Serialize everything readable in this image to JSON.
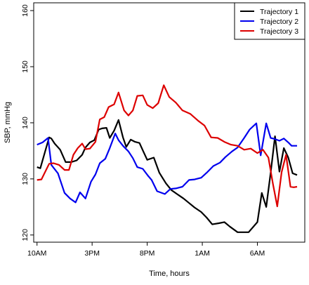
{
  "chart_data": {
    "type": "line",
    "title": "",
    "xlabel": "Time, hours",
    "ylabel": "SBP, mmHg",
    "ylim": [
      120,
      160
    ],
    "yticks": [
      120,
      130,
      140,
      150,
      160
    ],
    "x_tick_labels": [
      "10AM",
      "3PM",
      "8PM",
      "1AM",
      "6AM"
    ],
    "x_tick_hours": [
      0,
      5,
      10,
      15,
      20
    ],
    "xlim": [
      -0.3,
      24.3
    ],
    "grid": false,
    "legend_position": "top-right",
    "series": [
      {
        "name": "Trajectory 1",
        "color": "#000000",
        "x": [
          0,
          0.3,
          1.1,
          1.3,
          1.6,
          2.1,
          2.6,
          3.1,
          3.6,
          4.1,
          4.4,
          4.8,
          5.2,
          5.6,
          5.9,
          6.3,
          6.6,
          7.0,
          7.4,
          7.8,
          8.1,
          8.5,
          8.9,
          9.3,
          9.6,
          10.0,
          10.6,
          11.1,
          11.7,
          12.2,
          12.7,
          13.3,
          13.8,
          14.3,
          14.9,
          15.4,
          15.9,
          16.5,
          17.0,
          17.5,
          18.2,
          19.2,
          20.0,
          20.4,
          20.8,
          21.2,
          21.6,
          22.0,
          22.4,
          22.8,
          23.2,
          23.6
        ],
        "y": [
          132.1,
          131.9,
          137.4,
          137.2,
          136.3,
          135.2,
          133.0,
          133.0,
          133.3,
          134.3,
          135.6,
          136.5,
          136.9,
          138.8,
          139.0,
          139.1,
          137.3,
          138.6,
          140.5,
          137.4,
          135.7,
          137.0,
          136.6,
          136.4,
          135.1,
          133.4,
          133.8,
          131.1,
          129.2,
          128.0,
          127.3,
          126.5,
          125.7,
          124.9,
          124.1,
          123.1,
          121.9,
          122.1,
          122.3,
          121.5,
          120.5,
          120.5,
          122.3,
          127.5,
          125.0,
          131.1,
          137.6,
          131.3,
          135.5,
          133.8,
          131.0,
          130.7
        ]
      },
      {
        "name": "Trajectory 2",
        "color": "#0000ee",
        "x": [
          0,
          0.5,
          1.0,
          1.3,
          1.9,
          2.5,
          3.0,
          3.5,
          3.9,
          4.4,
          4.9,
          5.3,
          5.7,
          6.2,
          6.6,
          7.1,
          7.4,
          7.8,
          8.3,
          8.7,
          9.1,
          9.6,
          10.1,
          10.4,
          10.9,
          11.6,
          12.1,
          12.6,
          13.2,
          13.8,
          14.3,
          14.9,
          15.4,
          16.0,
          16.6,
          17.1,
          17.7,
          18.2,
          18.8,
          19.3,
          19.9,
          20.3,
          20.8,
          21.2,
          21.6,
          22.0,
          22.4,
          22.8,
          23.1,
          23.6
        ],
        "y": [
          136.1,
          136.5,
          137.3,
          132.5,
          131.0,
          127.5,
          126.5,
          125.8,
          127.6,
          126.5,
          129.5,
          130.8,
          132.8,
          133.6,
          135.5,
          138.1,
          136.9,
          135.9,
          134.9,
          133.7,
          132.1,
          131.8,
          130.5,
          129.8,
          127.8,
          127.3,
          128.2,
          128.3,
          128.6,
          129.8,
          129.9,
          130.2,
          131.1,
          132.3,
          132.9,
          133.9,
          134.9,
          135.6,
          137.3,
          138.8,
          139.9,
          134.2,
          139.9,
          137.3,
          137.1,
          136.8,
          137.2,
          136.5,
          135.9,
          135.9
        ]
      },
      {
        "name": "Trajectory 3",
        "color": "#dd0000",
        "x": [
          0,
          0.4,
          1.1,
          1.5,
          2.0,
          2.5,
          2.9,
          3.3,
          3.7,
          4.1,
          4.4,
          4.8,
          5.3,
          5.7,
          6.1,
          6.5,
          7.0,
          7.4,
          7.9,
          8.3,
          8.7,
          9.1,
          9.6,
          10.0,
          10.5,
          11.0,
          11.5,
          12.0,
          12.6,
          13.2,
          13.9,
          14.6,
          15.2,
          15.8,
          16.4,
          17.0,
          17.6,
          18.2,
          18.8,
          19.4,
          20.0,
          20.5,
          21.0,
          21.4,
          21.8,
          22.2,
          22.6,
          23.0,
          23.3,
          23.6
        ],
        "y": [
          129.8,
          129.9,
          132.7,
          132.8,
          132.5,
          131.6,
          131.6,
          134.3,
          135.5,
          136.3,
          135.3,
          135.4,
          136.6,
          140.6,
          141.0,
          142.8,
          143.3,
          145.4,
          142.2,
          141.3,
          142.2,
          144.8,
          144.9,
          143.2,
          142.6,
          143.5,
          146.7,
          144.6,
          143.6,
          142.2,
          141.6,
          140.4,
          139.5,
          137.4,
          137.3,
          136.6,
          136.1,
          135.9,
          135.2,
          135.4,
          134.6,
          135.2,
          133.8,
          129.2,
          125.1,
          131.2,
          134.3,
          128.6,
          128.5,
          128.6
        ]
      }
    ]
  }
}
